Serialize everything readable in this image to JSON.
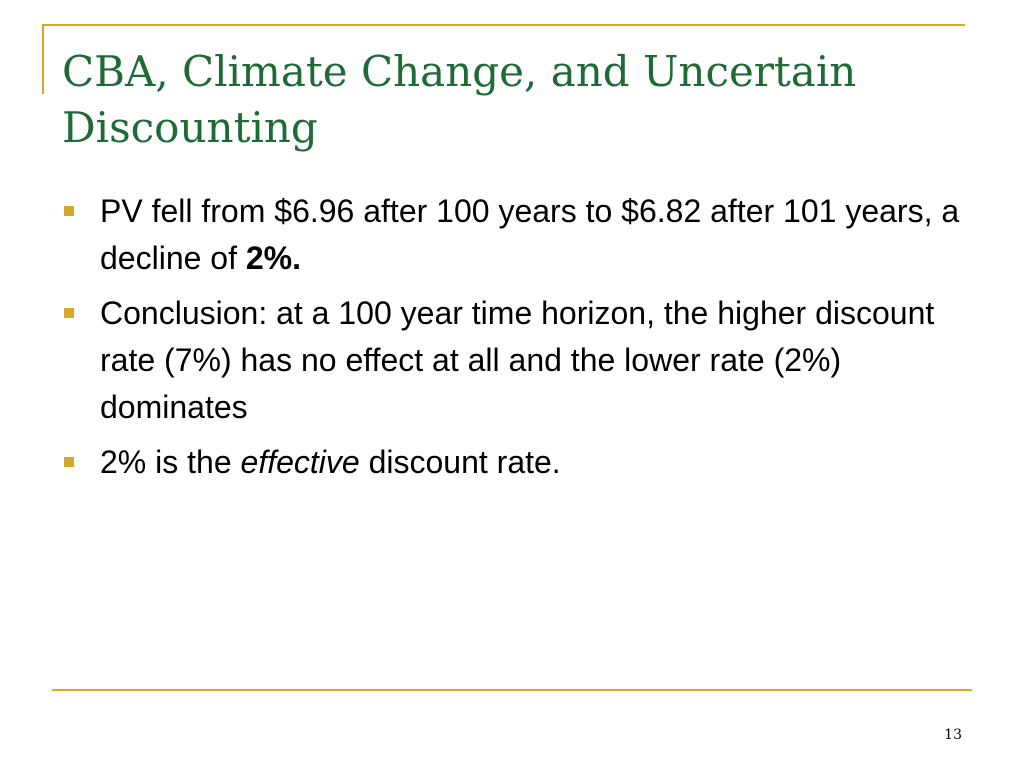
{
  "slide": {
    "title_line_1": "CBA, Climate Change, and Uncertain",
    "title_line_2": "Discounting",
    "accent_color": "#d4a82a",
    "title_color": "#1e6b35",
    "bullets": [
      {
        "text_1": "PV fell from $6.96 after 100 years to $6.82 after 101 years, a decline of ",
        "bold": "2%."
      },
      {
        "text": "Conclusion: at a 100 year time horizon, the higher discount rate (7%) has no effect at all and the lower rate (2%) dominates"
      },
      {
        "text_1": "2% is the ",
        "italic": "effective",
        "text_2": " discount rate."
      }
    ],
    "page_number": "13"
  }
}
